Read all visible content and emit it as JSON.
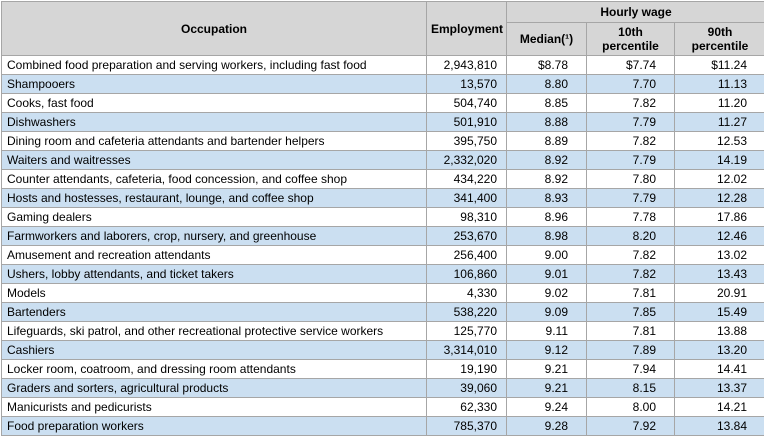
{
  "chart_data": {
    "type": "table",
    "title": "",
    "header": {
      "occupation": "Occupation",
      "employment": "Employment",
      "hourly_wage_group": "Hourly wage",
      "median": "Median(¹)",
      "p10": "10th percentile",
      "p90": "90th percentile"
    },
    "columns": [
      "Occupation",
      "Employment",
      "Median(¹)",
      "10th percentile",
      "90th percentile"
    ],
    "rows": [
      {
        "occupation": "Combined food preparation and serving workers, including fast food",
        "employment": "2,943,810",
        "median": "$8.78",
        "p10": "$7.74",
        "p90": "$11.24"
      },
      {
        "occupation": "Shampooers",
        "employment": "13,570",
        "median": "8.80",
        "p10": "7.70",
        "p90": "11.13"
      },
      {
        "occupation": "Cooks, fast food",
        "employment": "504,740",
        "median": "8.85",
        "p10": "7.82",
        "p90": "11.20"
      },
      {
        "occupation": "Dishwashers",
        "employment": "501,910",
        "median": "8.88",
        "p10": "7.79",
        "p90": "11.27"
      },
      {
        "occupation": "Dining room and cafeteria attendants and bartender helpers",
        "employment": "395,750",
        "median": "8.89",
        "p10": "7.82",
        "p90": "12.53"
      },
      {
        "occupation": "Waiters and waitresses",
        "employment": "2,332,020",
        "median": "8.92",
        "p10": "7.79",
        "p90": "14.19"
      },
      {
        "occupation": "Counter attendants, cafeteria, food concession, and coffee shop",
        "employment": "434,220",
        "median": "8.92",
        "p10": "7.80",
        "p90": "12.02"
      },
      {
        "occupation": "Hosts and hostesses, restaurant, lounge, and coffee shop",
        "employment": "341,400",
        "median": "8.93",
        "p10": "7.79",
        "p90": "12.28"
      },
      {
        "occupation": "Gaming dealers",
        "employment": "98,310",
        "median": "8.96",
        "p10": "7.78",
        "p90": "17.86"
      },
      {
        "occupation": "Farmworkers and laborers, crop, nursery, and greenhouse",
        "employment": "253,670",
        "median": "8.98",
        "p10": "8.20",
        "p90": "12.46"
      },
      {
        "occupation": "Amusement and recreation attendants",
        "employment": "256,400",
        "median": "9.00",
        "p10": "7.82",
        "p90": "13.02"
      },
      {
        "occupation": "Ushers, lobby attendants, and ticket takers",
        "employment": "106,860",
        "median": "9.01",
        "p10": "7.82",
        "p90": "13.43"
      },
      {
        "occupation": "Models",
        "employment": "4,330",
        "median": "9.02",
        "p10": "7.81",
        "p90": "20.91"
      },
      {
        "occupation": "Bartenders",
        "employment": "538,220",
        "median": "9.09",
        "p10": "7.85",
        "p90": "15.49"
      },
      {
        "occupation": "Lifeguards, ski patrol, and other recreational protective service workers",
        "employment": "125,770",
        "median": "9.11",
        "p10": "7.81",
        "p90": "13.88"
      },
      {
        "occupation": "Cashiers",
        "employment": "3,314,010",
        "median": "9.12",
        "p10": "7.89",
        "p90": "13.20"
      },
      {
        "occupation": "Locker room, coatroom, and dressing room attendants",
        "employment": "19,190",
        "median": "9.21",
        "p10": "7.94",
        "p90": "14.41"
      },
      {
        "occupation": "Graders and sorters, agricultural products",
        "employment": "39,060",
        "median": "9.21",
        "p10": "8.15",
        "p90": "13.37"
      },
      {
        "occupation": "Manicurists and pedicurists",
        "employment": "62,330",
        "median": "9.24",
        "p10": "8.00",
        "p90": "14.21"
      },
      {
        "occupation": "Food preparation workers",
        "employment": "785,370",
        "median": "9.28",
        "p10": "7.92",
        "p90": "13.84"
      }
    ]
  },
  "colors": {
    "header_bg": "#d6d6d6",
    "row_bg": "#ffffff",
    "row_alt_bg": "#cbdff1",
    "border": "#a6a6a6",
    "outer_border": "#8c8c8c"
  }
}
